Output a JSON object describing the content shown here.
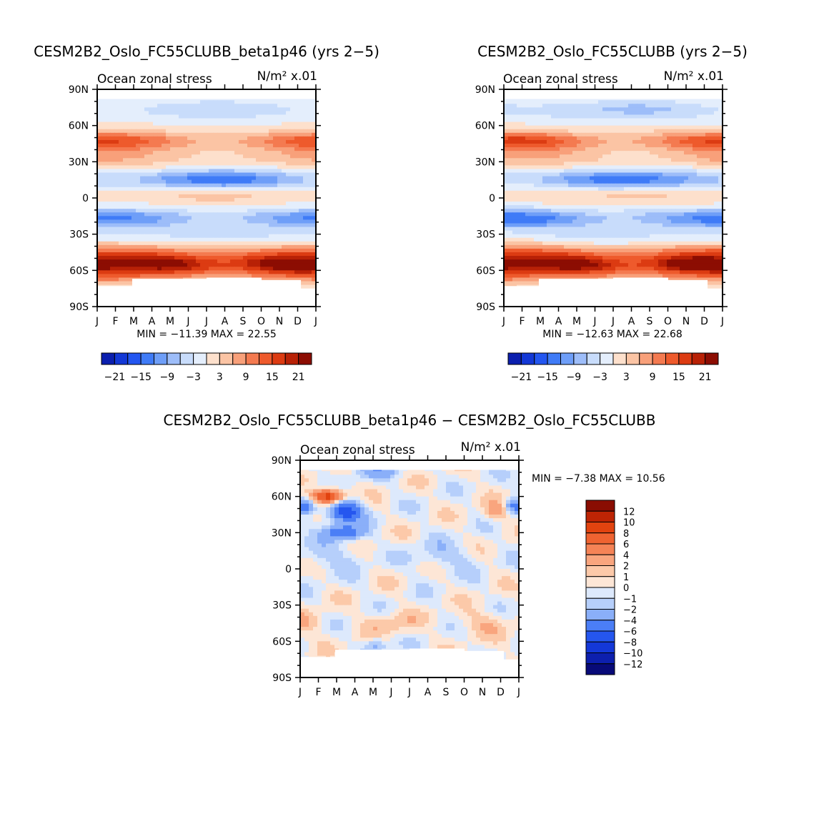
{
  "colors": {
    "neg": [
      "#08087a",
      "#0b1fae",
      "#1338d6",
      "#2356f0",
      "#3f7bf7",
      "#6e9ef8",
      "#9dbdf9",
      "#c8dcfb",
      "#e4eefc"
    ],
    "zero": "#fdf4ec",
    "pos": [
      "#fde0cc",
      "#fbc4a4",
      "#f8a07a",
      "#f47a50",
      "#ee5a2c",
      "#dc3b12",
      "#b82106",
      "#8c0d02"
    ],
    "diff_neg": [
      "#080a78",
      "#0d1fae",
      "#1438d8",
      "#2556ef",
      "#4b7ef6",
      "#8aaff9",
      "#b6cffb",
      "#dde9fc"
    ],
    "diff_pos": [
      "#fde6d6",
      "#fcc9a9",
      "#f9a57e",
      "#f58356",
      "#ef6331",
      "#e2430f",
      "#bd2404",
      "#8a0d02"
    ]
  },
  "chart_data": [
    {
      "id": "top-left",
      "type": "heatmap",
      "title": "CESM2B2_Oslo_FC55CLUBB_beta1p46 (yrs 2−5)",
      "subtitle_left": "Ocean zonal stress",
      "units": "N/m² x.01",
      "x_tick_labels": [
        "J",
        "F",
        "M",
        "A",
        "M",
        "J",
        "J",
        "A",
        "S",
        "O",
        "N",
        "D",
        "J"
      ],
      "y_tick_labels": [
        "90N",
        "60N",
        "30N",
        "0",
        "30S",
        "60S",
        "90S"
      ],
      "y_range": [
        -90,
        90
      ],
      "min_max_text": "MIN = −11.39 MAX =   22.55",
      "min": -11.39,
      "max": 22.55,
      "colorbar_labels": [
        "−21",
        "−15",
        "−9",
        "−3",
        "3",
        "9",
        "15",
        "21"
      ],
      "bands": [
        {
          "lat": 73,
          "base": -4,
          "amp": 2
        },
        {
          "lat": 47,
          "base": 10,
          "amp": 5
        },
        {
          "lat": 33,
          "base": 4,
          "amp": 2
        },
        {
          "lat": 15,
          "base": -10,
          "amp": 3
        },
        {
          "lat": 3,
          "base": 3,
          "amp": -2
        },
        {
          "lat": -17,
          "base": -9,
          "amp": -4
        },
        {
          "lat": -32,
          "base": -3,
          "amp": 1
        },
        {
          "lat": -45,
          "base": 8,
          "amp": 2
        },
        {
          "lat": -55,
          "base": 19,
          "amp": 3
        },
        {
          "lat": -65,
          "base": 6,
          "amp": 2
        }
      ]
    },
    {
      "id": "top-right",
      "type": "heatmap",
      "title": "CESM2B2_Oslo_FC55CLUBB (yrs 2−5)",
      "subtitle_left": "Ocean zonal stress",
      "units": "N/m² x.01",
      "x_tick_labels": [
        "J",
        "F",
        "M",
        "A",
        "M",
        "J",
        "J",
        "A",
        "S",
        "O",
        "N",
        "D",
        "J"
      ],
      "y_tick_labels": [
        "90N",
        "60N",
        "30N",
        "0",
        "30S",
        "60S",
        "90S"
      ],
      "y_range": [
        -90,
        90
      ],
      "min_max_text": "MIN = −12.63 MAX =   22.68",
      "min": -12.63,
      "max": 22.68,
      "colorbar_labels": [
        "−21",
        "−15",
        "−9",
        "−3",
        "3",
        "9",
        "15",
        "21"
      ],
      "bands": [
        {
          "lat": 73,
          "base": -5,
          "amp": 2
        },
        {
          "lat": 47,
          "base": 11,
          "amp": 5
        },
        {
          "lat": 33,
          "base": 4,
          "amp": 2
        },
        {
          "lat": 15,
          "base": -10,
          "amp": 3
        },
        {
          "lat": 3,
          "base": 3,
          "amp": -2
        },
        {
          "lat": -17,
          "base": -10,
          "amp": -4
        },
        {
          "lat": -32,
          "base": -3,
          "amp": 1
        },
        {
          "lat": -45,
          "base": 8,
          "amp": 2
        },
        {
          "lat": -55,
          "base": 19,
          "amp": 3
        },
        {
          "lat": -65,
          "base": 6,
          "amp": 2
        }
      ]
    },
    {
      "id": "difference",
      "type": "heatmap",
      "title": "CESM2B2_Oslo_FC55CLUBB_beta1p46 − CESM2B2_Oslo_FC55CLUBB",
      "subtitle_left": "Ocean zonal stress",
      "units": "N/m² x.01",
      "x_tick_labels": [
        "J",
        "F",
        "M",
        "A",
        "M",
        "J",
        "J",
        "A",
        "S",
        "O",
        "N",
        "D",
        "J"
      ],
      "y_tick_labels": [
        "90N",
        "60N",
        "30N",
        "0",
        "30S",
        "60S",
        "90S"
      ],
      "y_range": [
        -90,
        90
      ],
      "min_max_text": "MIN =   −7.38 MAX =   10.56",
      "min": -7.38,
      "max": 10.56,
      "colorbar_labels": [
        "12",
        "10",
        "8",
        "6",
        "4",
        "2",
        "1",
        "0",
        "−1",
        "−2",
        "−4",
        "−6",
        "−8",
        "−10",
        "−12"
      ]
    }
  ]
}
